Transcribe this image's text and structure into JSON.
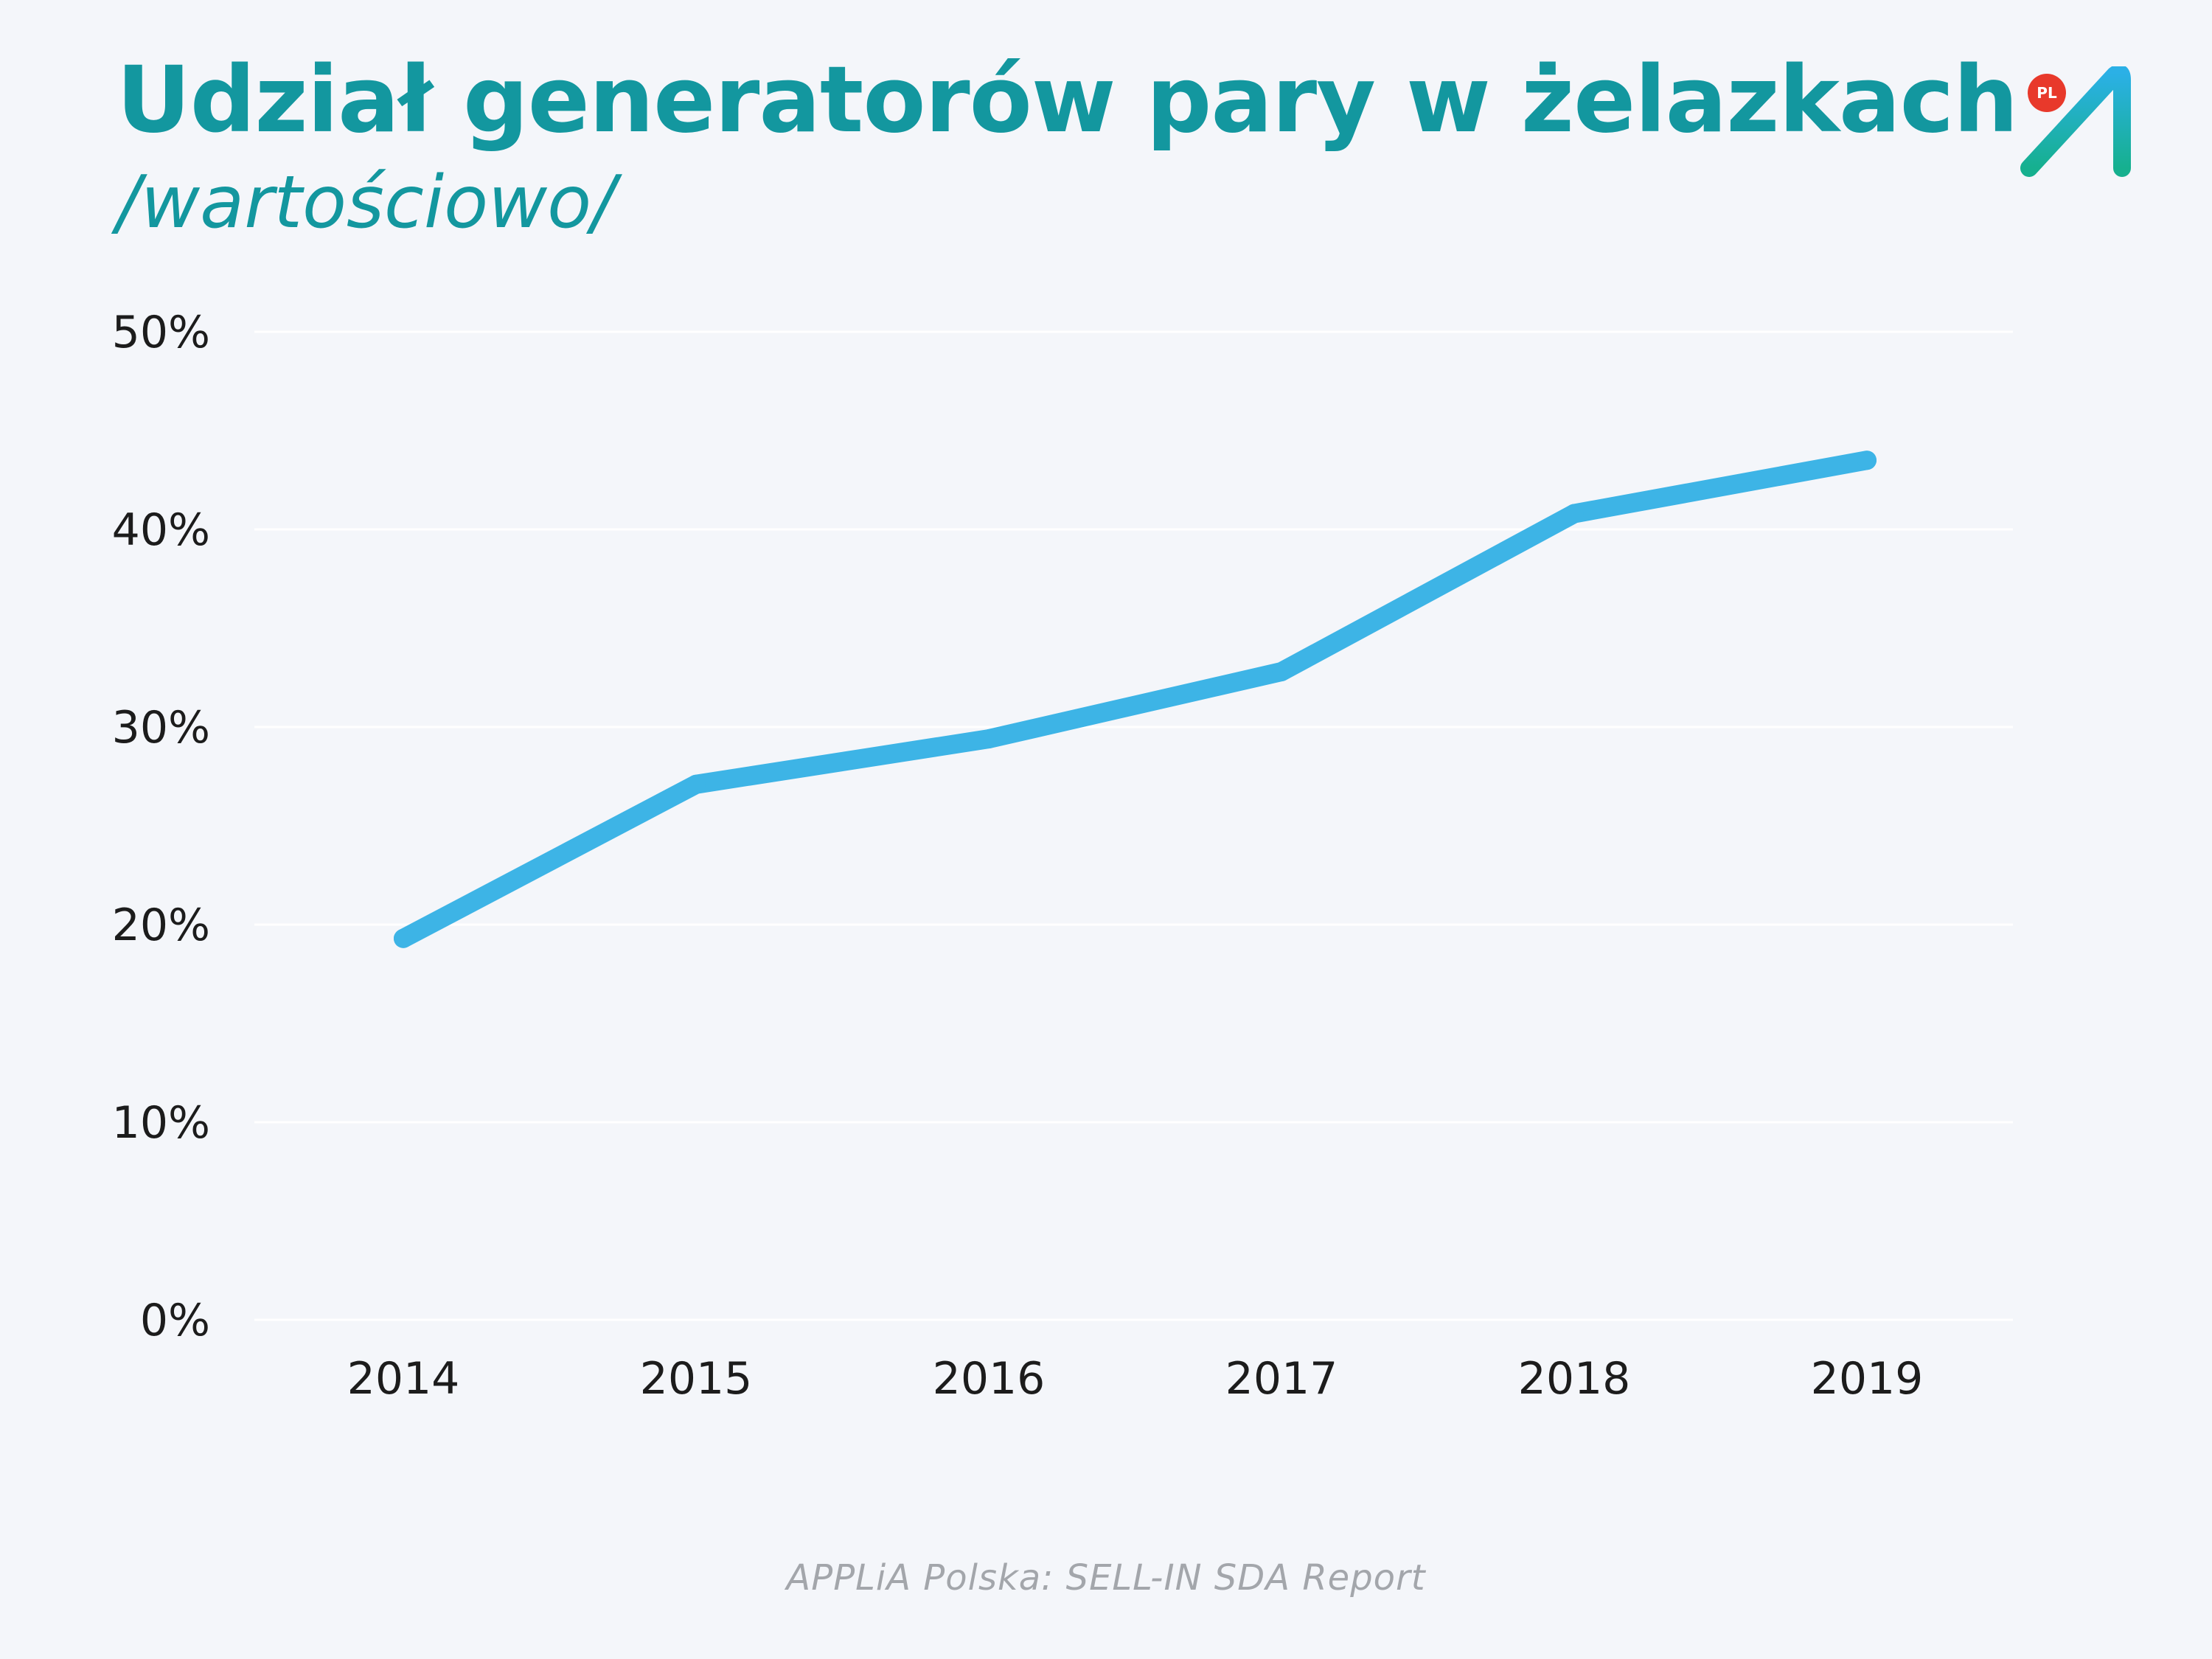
{
  "header": {
    "title": "Udział generatorów pary w żelazkach",
    "subtitle": "/wartościowo/"
  },
  "logo": {
    "badge": "PL",
    "icon": "applia-a-logo-icon",
    "badge_color": "#e8392b",
    "gradient_colors": [
      "#2bb0e6",
      "#16b08f"
    ]
  },
  "chart_data": {
    "type": "line",
    "title": "Udział generatorów pary w żelazkach",
    "subtitle": "/wartościowo/",
    "categories": [
      "2014",
      "2015",
      "2016",
      "2017",
      "2018",
      "2019"
    ],
    "series": [
      {
        "values": [
          19.3,
          27.1,
          29.4,
          32.8,
          40.8,
          43.5
        ],
        "color": "#3db4e6"
      }
    ],
    "y_ticks": [
      0,
      10,
      20,
      30,
      40,
      50
    ],
    "y_tick_labels": [
      "0%",
      "10%",
      "20%",
      "30%",
      "40%",
      "50%"
    ],
    "ylim": [
      0,
      50
    ],
    "xlabel": "",
    "ylabel": "",
    "grid": true,
    "legend": "none"
  },
  "footer": {
    "source": "APPLiA Polska: SELL-IN SDA Report"
  }
}
